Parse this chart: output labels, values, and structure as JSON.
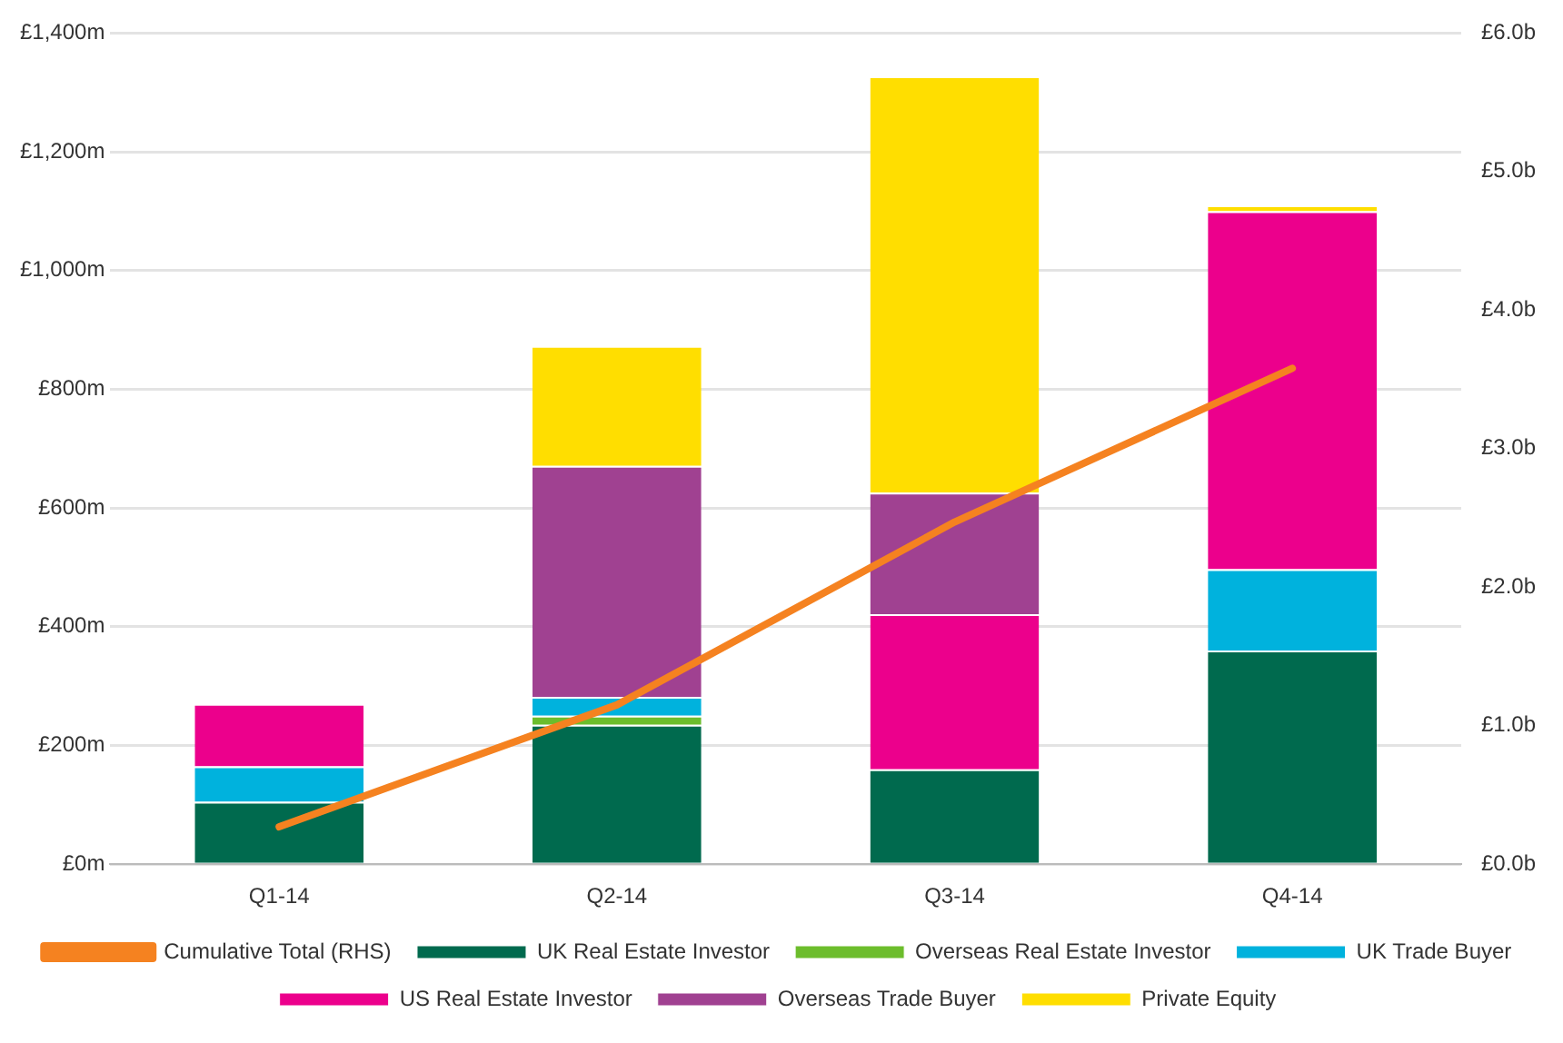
{
  "chart_data": {
    "type": "bar",
    "stacked": true,
    "categories": [
      "Q1-14",
      "Q2-14",
      "Q3-14",
      "Q4-14"
    ],
    "series": [
      {
        "name": "UK Real Estate Investor",
        "color": "#006a4e",
        "values": [
          105,
          235,
          160,
          360
        ]
      },
      {
        "name": "Overseas Real Estate Investor",
        "color": "#6cbd2c",
        "values": [
          null,
          15,
          null,
          null
        ]
      },
      {
        "name": "UK Trade Buyer",
        "color": "#00b2dd",
        "values": [
          60,
          32,
          null,
          137
        ]
      },
      {
        "name": "US Real Estate Investor",
        "color": "#ec008c",
        "values": [
          105,
          null,
          261,
          603
        ]
      },
      {
        "name": "Overseas Trade Buyer",
        "color": "#a04191",
        "values": [
          null,
          389,
          205,
          null
        ]
      },
      {
        "name": "Private Equity",
        "color": "#ffde00",
        "values": [
          null,
          202,
          701,
          10
        ]
      },
      {
        "name": "Cumulative Total (RHS)",
        "type": "line",
        "axis": "y2",
        "color": "#f58220",
        "values": [
          0.27,
          1.15,
          2.47,
          3.58
        ]
      }
    ],
    "ylim": [
      0,
      1400
    ],
    "yticks": [
      {
        "value": 0,
        "label": "£0m"
      },
      {
        "value": 200,
        "label": "£200m"
      },
      {
        "value": 400,
        "label": "£400m"
      },
      {
        "value": 600,
        "label": "£600m"
      },
      {
        "value": 800,
        "label": "£800m"
      },
      {
        "value": 1000,
        "label": "£1,000m"
      },
      {
        "value": 1200,
        "label": "£1,200m"
      },
      {
        "value": 1400,
        "label": "£1,400m"
      }
    ],
    "y2lim": [
      0,
      6
    ],
    "y2ticks": [
      {
        "value": 0,
        "label": "£0.0b"
      },
      {
        "value": 1,
        "label": "£1.0b"
      },
      {
        "value": 2,
        "label": "£2.0b"
      },
      {
        "value": 3,
        "label": "£3.0b"
      },
      {
        "value": 4,
        "label": "£4.0b"
      },
      {
        "value": 5,
        "label": "£5.0b"
      },
      {
        "value": 6,
        "label": "£6.0b"
      }
    ],
    "grid": "y",
    "legend": "bottom",
    "marker": "none",
    "line_style": "solid"
  }
}
